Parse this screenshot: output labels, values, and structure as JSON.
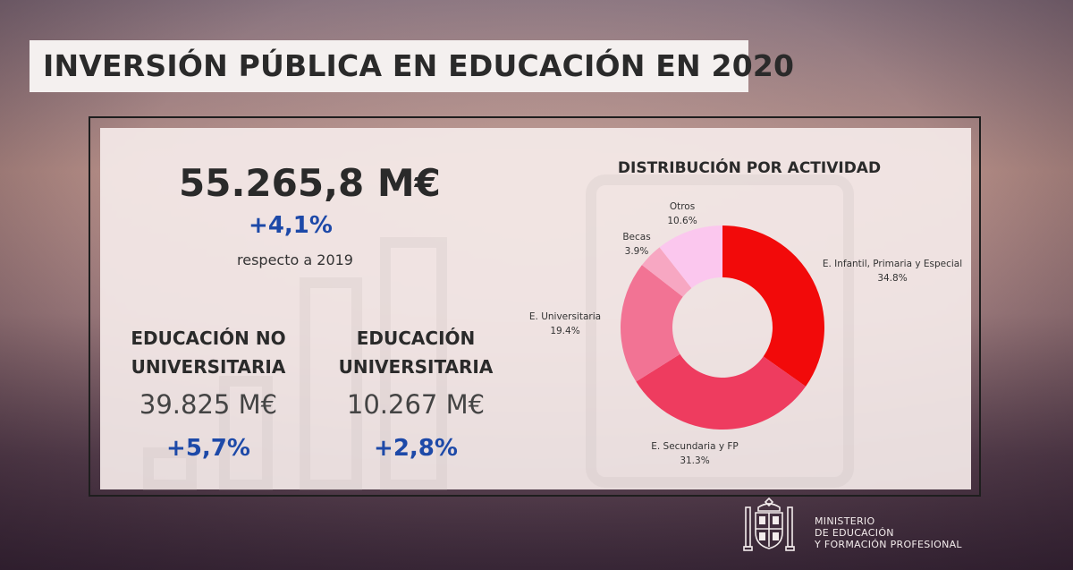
{
  "title": "INVERSIÓN PÚBLICA EN EDUCACIÓN EN 2020",
  "summary": {
    "total": "55.265,8 M€",
    "change": "+4,1%",
    "reference": "respecto a 2019"
  },
  "categories": [
    {
      "title_line1": "EDUCACIÓN NO",
      "title_line2": "UNIVERSITARIA",
      "amount": "39.825 M€",
      "change": "+5,7%"
    },
    {
      "title_line1": "EDUCACIÓN",
      "title_line2": "UNIVERSITARIA",
      "amount": "10.267 M€",
      "change": "+2,8%"
    }
  ],
  "chart_data": {
    "type": "pie",
    "title": "DISTRIBUCIÓN POR ACTIVIDAD",
    "donut": true,
    "slices": [
      {
        "label": "E. Infantil, Primaria y Especial",
        "value": 34.8,
        "value_label": "34.8%",
        "color": "#f20a0a"
      },
      {
        "label": "E. Secundaria y FP",
        "value": 31.3,
        "value_label": "31.3%",
        "color": "#ee3c5f"
      },
      {
        "label": "E. Universitaria",
        "value": 19.4,
        "value_label": "19.4%",
        "color": "#f27394"
      },
      {
        "label": "Becas",
        "value": 3.9,
        "value_label": "3.9%",
        "color": "#f7a7c2"
      },
      {
        "label": "Otros",
        "value": 10.6,
        "value_label": "10.6%",
        "color": "#fbc7ee"
      }
    ]
  },
  "footer": {
    "line1": "MINISTERIO",
    "line2": "DE EDUCACIÓN",
    "line3": "Y FORMACIÓN PROFESIONAL"
  },
  "colors": {
    "accent_blue": "#1d49a8",
    "text_dark": "#2a2a2a"
  }
}
